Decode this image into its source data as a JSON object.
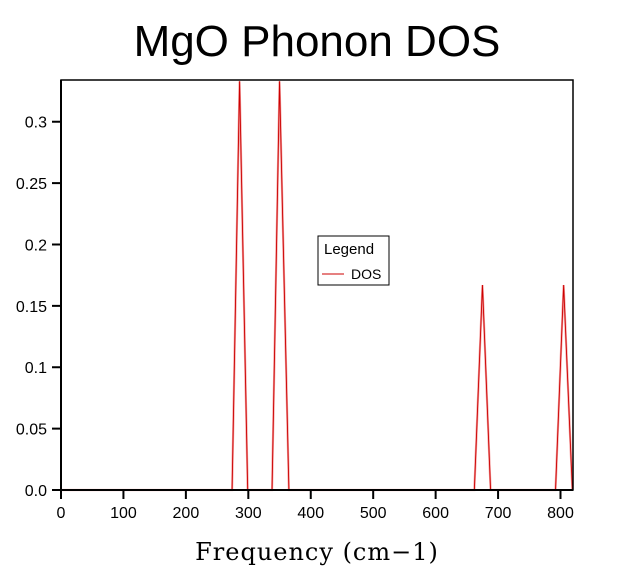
{
  "chart_data": {
    "type": "line",
    "title": "MgO Phonon DOS",
    "xlabel": "Frequency (cm−1)",
    "ylabel": "",
    "xlim": [
      0,
      820
    ],
    "ylim": [
      0,
      0.334
    ],
    "xticks": [
      0,
      100,
      200,
      300,
      400,
      500,
      600,
      700,
      800
    ],
    "yticks": [
      0.0,
      0.05,
      0.1,
      0.15,
      0.2,
      0.25,
      0.3
    ],
    "ytick_labels": [
      "0.0",
      "0.05",
      "0.1",
      "0.15",
      "0.2",
      "0.25",
      "0.3"
    ],
    "grid": false,
    "legend": {
      "title": "Legend",
      "placement": "center",
      "entries": [
        "DOS"
      ]
    },
    "series": [
      {
        "name": "DOS",
        "color": "#cc0000",
        "x": [
          0,
          274,
          286,
          299,
          338,
          350,
          365,
          662,
          675,
          688,
          792,
          805,
          819
        ],
        "y": [
          0,
          0,
          0.333,
          0,
          0,
          0.333,
          0,
          0,
          0.167,
          0,
          0,
          0.167,
          0
        ]
      }
    ]
  }
}
